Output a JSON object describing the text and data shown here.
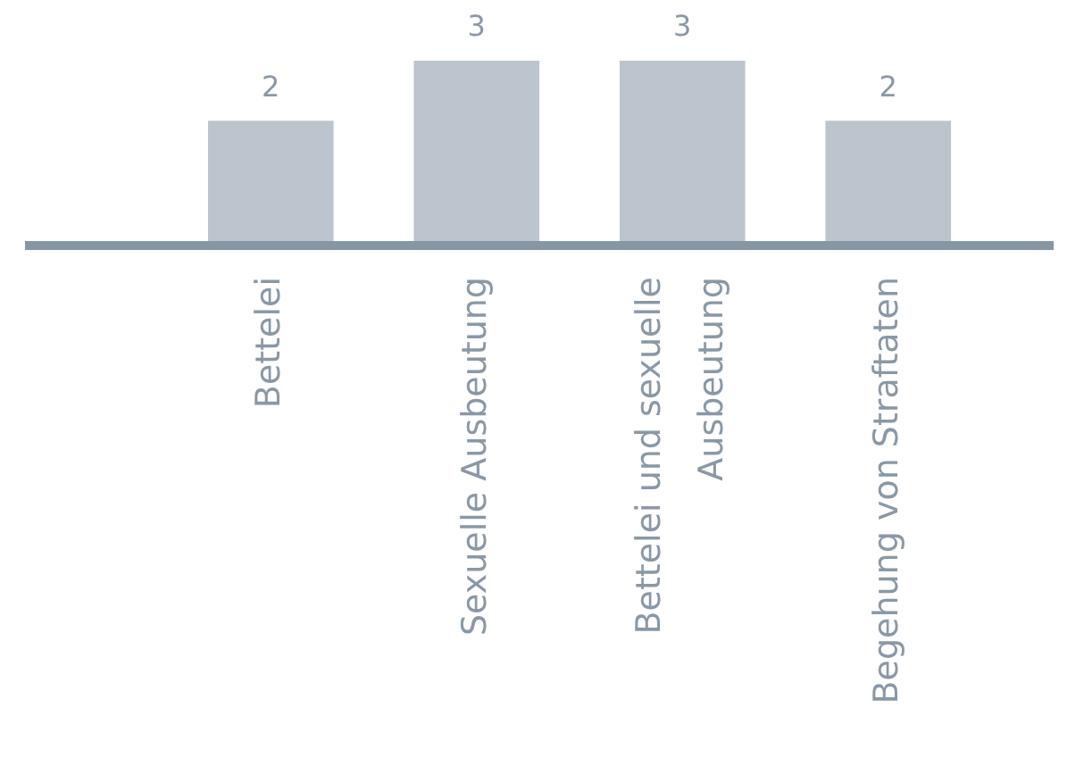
{
  "chart_data": {
    "type": "bar",
    "categories": [
      "Bettelei",
      "Sexuelle Ausbeutung",
      "Bettelei und sexuelle Ausbeutung",
      "Begehung von Straftaten"
    ],
    "values": [
      2,
      3,
      3,
      2
    ],
    "color": "#bcc4ce",
    "data_labels": true,
    "grid": false,
    "legend": false,
    "tick_labels": "x"
  }
}
